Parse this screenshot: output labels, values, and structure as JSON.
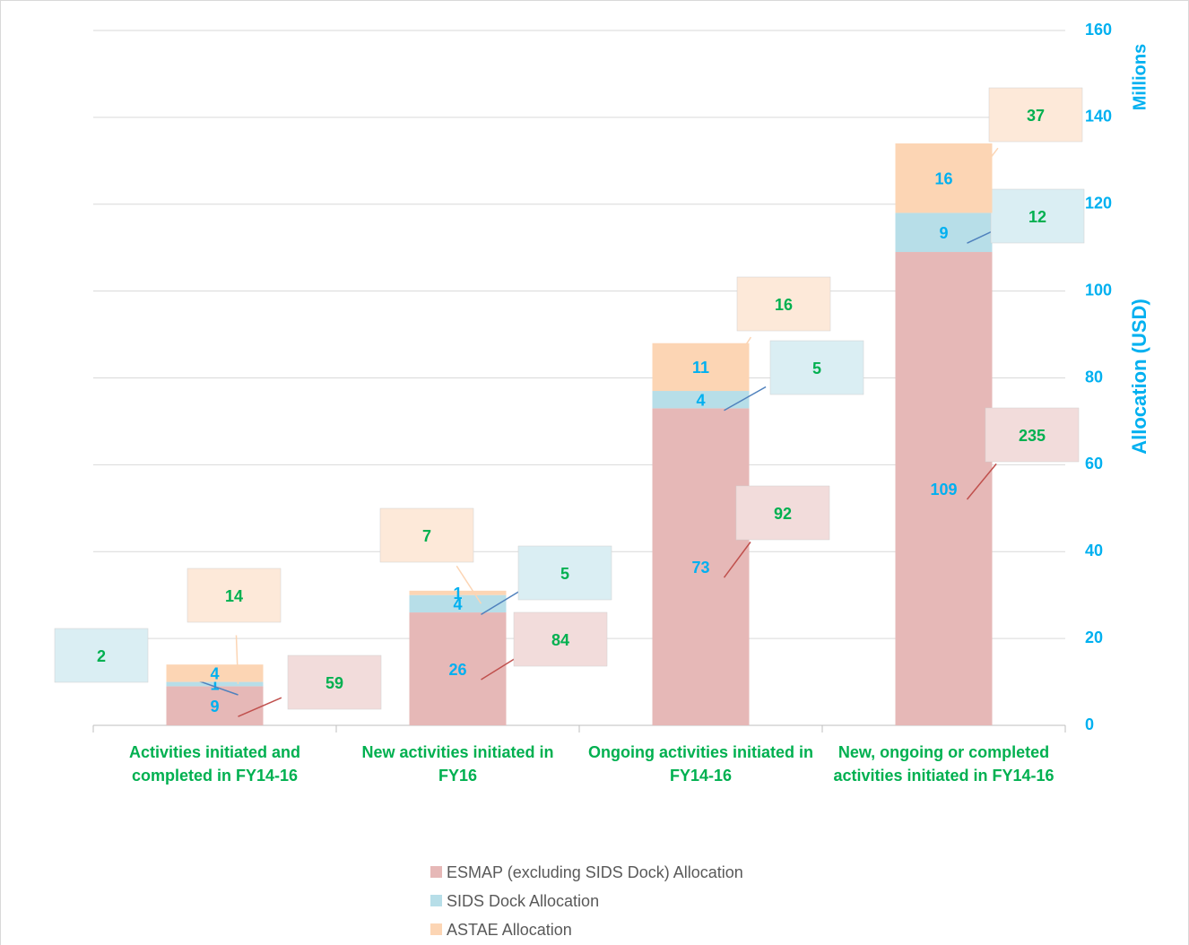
{
  "chart_data": {
    "type": "stacked-bar",
    "categories": [
      "Activities initiated and completed in FY14-16",
      "New activities initiated in FY16",
      "Ongoing activities initiated in FY14-16",
      "New, ongoing or completed activities initiated in FY14-16"
    ],
    "series": [
      {
        "name": "ESMAP (excluding SIDS Dock) Allocation",
        "color": "#e6b8b7",
        "values": [
          9,
          26,
          73,
          109
        ],
        "callouts": [
          59,
          84,
          92,
          235
        ],
        "callout_color": "#f2dcdb",
        "leader_color": "#c0504d"
      },
      {
        "name": "SIDS Dock Allocation",
        "color": "#b7dee8",
        "values": [
          1,
          4,
          4,
          9
        ],
        "callouts": [
          2,
          5,
          5,
          12
        ],
        "callout_color": "#daeef3",
        "leader_color": "#4f81bd"
      },
      {
        "name": "ASTAE Allocation",
        "color": "#fcd5b4",
        "values": [
          4,
          1,
          11,
          16
        ],
        "callouts": [
          14,
          7,
          16,
          37
        ],
        "callout_color": "#fde9d9",
        "leader_color": "#fcd5b4"
      }
    ],
    "y_axis_label": "Allocation (USD)",
    "y_unit_label": "Millions",
    "ylim": [
      0,
      160
    ],
    "yticks": [
      0,
      20,
      40,
      60,
      80,
      100,
      120,
      140,
      160
    ],
    "y_axis_side": "right",
    "grid": true,
    "legend": "bottom"
  }
}
